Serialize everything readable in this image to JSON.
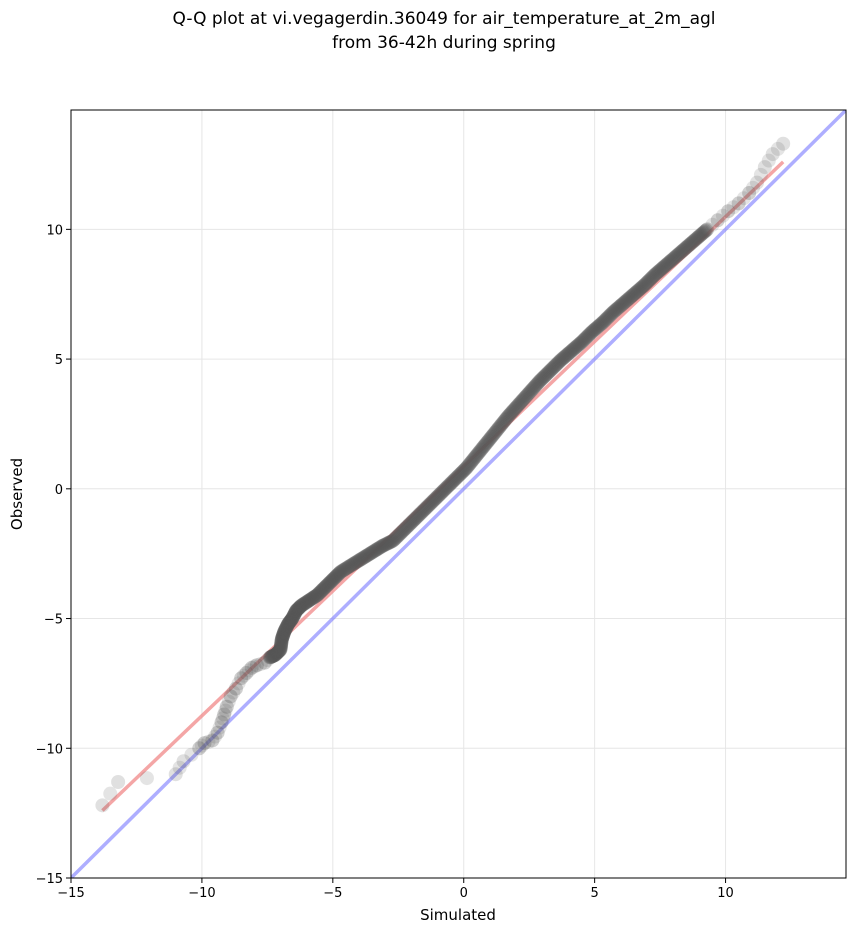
{
  "chart_data": {
    "type": "scatter",
    "title_lines": [
      "Q-Q plot at vi.vegagerdin.36049 for air_temperature_at_2m_agl",
      "from 36-42h during spring"
    ],
    "xlabel": "Simulated",
    "ylabel": "Observed",
    "xlim": [
      -15,
      14.6
    ],
    "ylim": [
      -15,
      14.6
    ],
    "xticks": [
      -15,
      -10,
      -5,
      0,
      5,
      10
    ],
    "yticks": [
      -15,
      -10,
      -5,
      0,
      5,
      10
    ],
    "xtick_labels": [
      "−15",
      "−10",
      "−5",
      "0",
      "5",
      "10"
    ],
    "ytick_labels": [
      "−15",
      "−10",
      "−5",
      "0",
      "5",
      "10"
    ],
    "grid": true,
    "reference_line": {
      "color": "#6b6bff",
      "slope": 1,
      "intercept": 0
    },
    "fit_line": {
      "color": "#f08080",
      "x": [
        -13.8,
        12.2
      ],
      "y": [
        -12.4,
        12.6
      ]
    },
    "point_color": "#555555",
    "quantiles": {
      "x": [
        -13.8,
        -13.2,
        -11.0,
        -10.7,
        -10.1,
        -9.9,
        -9.6,
        -9.4,
        -9.25,
        -9.15,
        -9.05,
        -8.9,
        -8.7,
        -8.5,
        -8.3,
        -8.1,
        -7.9,
        -7.6,
        -7.4,
        -7.2,
        -7.0,
        -6.95,
        -6.85,
        -6.7,
        -6.55,
        -6.4,
        -6.2,
        -5.9,
        -5.6,
        -5.3,
        -5.0,
        -4.7,
        -4.3,
        -3.9,
        -3.5,
        -3.1,
        -2.7,
        -2.3,
        -1.9,
        -1.5,
        -1.1,
        -0.7,
        -0.3,
        0.1,
        0.5,
        0.9,
        1.3,
        1.7,
        2.1,
        2.5,
        2.9,
        3.3,
        3.7,
        4.1,
        4.5,
        4.9,
        5.3,
        5.7,
        6.1,
        6.5,
        6.9,
        7.3,
        7.7,
        8.1,
        8.5,
        8.9,
        9.3,
        9.7,
        10.1,
        10.5,
        10.9,
        11.2,
        11.5,
        11.8,
        12.2
      ],
      "y": [
        -12.2,
        -11.3,
        -11.0,
        -10.5,
        -10.0,
        -9.8,
        -9.7,
        -9.4,
        -9.0,
        -8.7,
        -8.4,
        -8.0,
        -7.7,
        -7.3,
        -7.1,
        -6.9,
        -6.8,
        -6.7,
        -6.5,
        -6.4,
        -6.2,
        -5.8,
        -5.5,
        -5.2,
        -5.0,
        -4.7,
        -4.5,
        -4.3,
        -4.1,
        -3.8,
        -3.5,
        -3.2,
        -2.95,
        -2.7,
        -2.45,
        -2.2,
        -2.0,
        -1.6,
        -1.2,
        -0.8,
        -0.4,
        0.0,
        0.4,
        0.8,
        1.3,
        1.8,
        2.3,
        2.8,
        3.25,
        3.7,
        4.15,
        4.55,
        4.95,
        5.3,
        5.65,
        6.05,
        6.4,
        6.8,
        7.15,
        7.5,
        7.85,
        8.25,
        8.6,
        8.95,
        9.3,
        9.65,
        10.0,
        10.35,
        10.7,
        11.0,
        11.4,
        11.8,
        12.4,
        12.9,
        13.3
      ]
    }
  }
}
